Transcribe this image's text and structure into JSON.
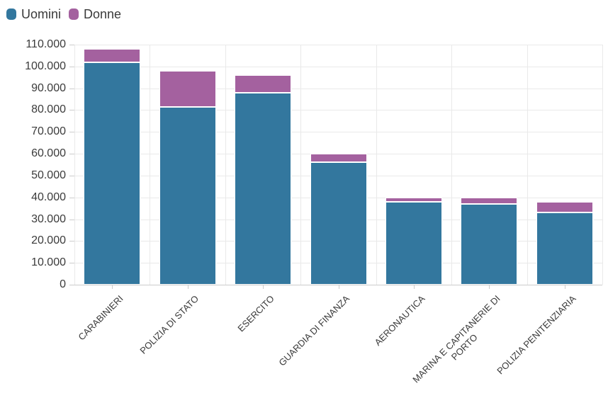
{
  "chart_data": {
    "type": "bar",
    "stacked": true,
    "title": "",
    "xlabel": "",
    "ylabel": "",
    "categories": [
      "CARABINIERI",
      "POLIZIA DI STATO",
      "ESERCITO",
      "GUARDIA DI FINANZA",
      "AERONAUTICA",
      "MARINA E CAPITANERIE DI\nPORTO",
      "POLIZIA PENITENZIARIA"
    ],
    "series": [
      {
        "name": "Uomini",
        "color": "#33779e",
        "values": [
          102000,
          81500,
          88000,
          56000,
          38000,
          37000,
          33000
        ]
      },
      {
        "name": "Donne",
        "color": "#a4619f",
        "values": [
          6000,
          16500,
          8000,
          4000,
          2000,
          3000,
          5000
        ]
      }
    ],
    "ylim": [
      0,
      110000
    ],
    "ytick_step": 10000,
    "ytick_labels": [
      "0",
      "10.000",
      "20.000",
      "30.000",
      "40.000",
      "50.000",
      "60.000",
      "70.000",
      "80.000",
      "90.000",
      "100.000",
      "110.000"
    ],
    "grid": true,
    "legend_position": "top-left",
    "number_format": "it"
  },
  "colors": {
    "background": "#ffffff",
    "gridline": "#e9e9e9",
    "axis": "#cccccc",
    "tick": "#cccccc",
    "text": "#3a3a3a",
    "segment_border": "#ffffff"
  }
}
